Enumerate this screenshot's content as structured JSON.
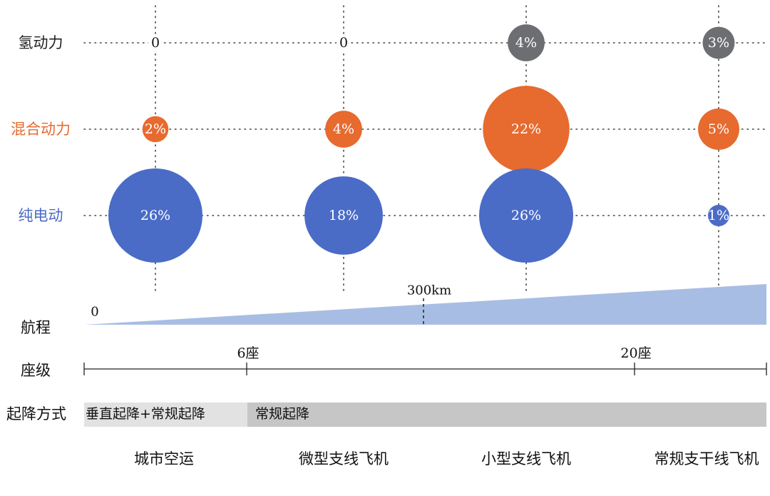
{
  "chart_data": {
    "type": "bubble",
    "categories": [
      "城市空运",
      "微型支线飞机",
      "小型支线飞机",
      "常规支干线飞机"
    ],
    "series": [
      {
        "name": "氢动力",
        "color": "#6d6e72",
        "label_color": "#222222",
        "values": [
          0,
          0,
          4,
          3
        ],
        "labels": [
          "0",
          "0",
          "4%",
          "3%"
        ]
      },
      {
        "name": "混合动力",
        "color": "#e76a2e",
        "label_color": "#e76a2e",
        "values": [
          2,
          4,
          22,
          5
        ],
        "labels": [
          "2%",
          "4%",
          "22%",
          "5%"
        ]
      },
      {
        "name": "纯电动",
        "color": "#4a6cc7",
        "label_color": "#4a6cc7",
        "values": [
          26,
          18,
          26,
          1
        ],
        "labels": [
          "26%",
          "18%",
          "26%",
          "1%"
        ]
      }
    ],
    "range": {
      "label": "航程",
      "start_label": "0",
      "marker_label": "300km",
      "color": "#a8bde4"
    },
    "seats": {
      "label": "座级",
      "ticks": [
        "6座",
        "20座"
      ]
    },
    "takeoff": {
      "label": "起降方式",
      "segments": [
        {
          "text": "垂直起降+常规起降",
          "color": "#e2e2e2"
        },
        {
          "text": "常规起降",
          "color": "#c6c6c6"
        }
      ]
    }
  }
}
